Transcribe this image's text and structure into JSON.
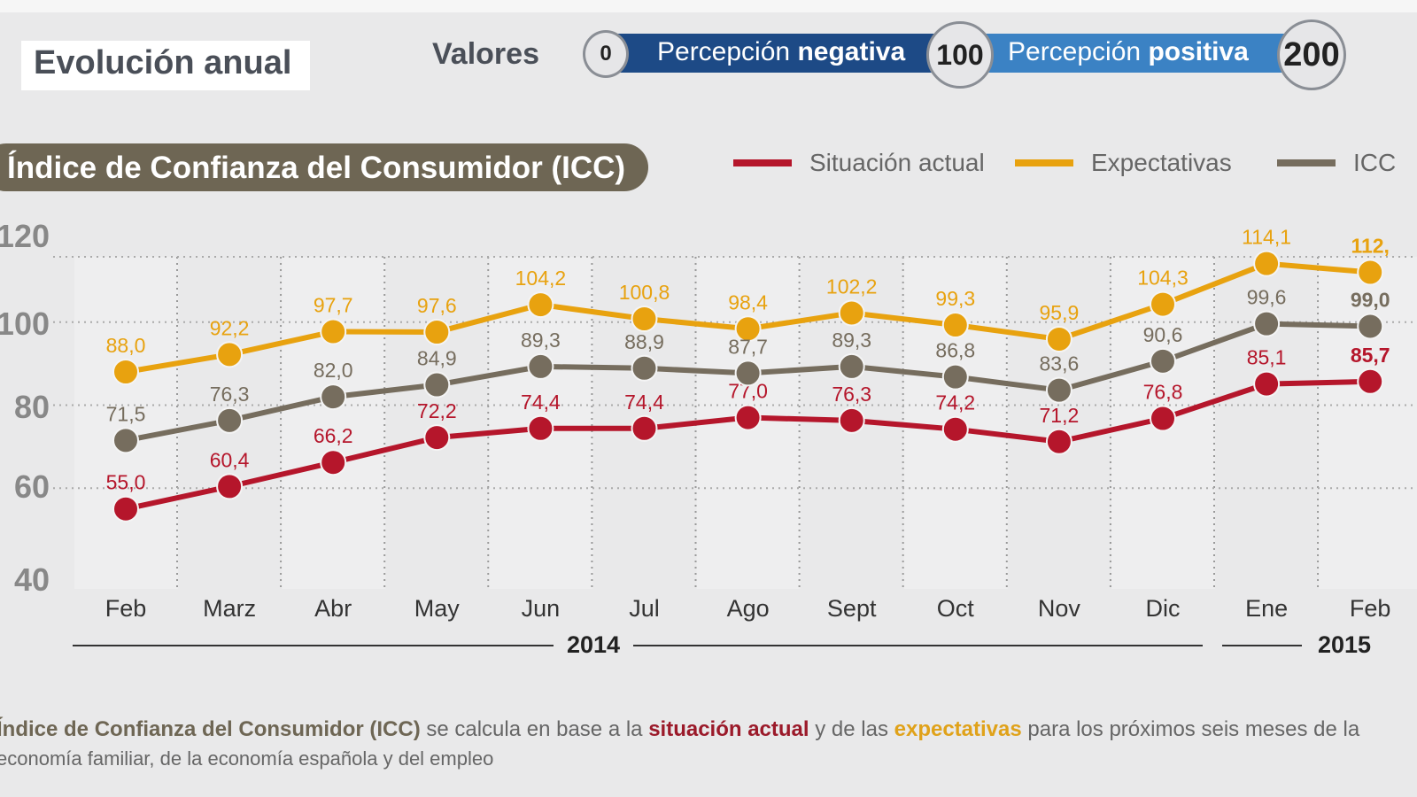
{
  "header": {
    "title": "Evolución anual",
    "valores_label": "Valores",
    "scale": {
      "min": "0",
      "mid": "100",
      "max": "200",
      "negative_pre": "Percepción ",
      "negative_bold": "negativa",
      "positive_pre": "Percepción ",
      "positive_bold": "positiva"
    }
  },
  "chart_data": {
    "type": "line",
    "title": "Índice de Confianza del Consumidor (ICC)",
    "categories": [
      "Feb",
      "Marz",
      "Abr",
      "May",
      "Jun",
      "Jul",
      "Ago",
      "Sept",
      "Oct",
      "Nov",
      "Dic",
      "Ene",
      "Feb"
    ],
    "year_labels": [
      "2014",
      "2015"
    ],
    "yticks": [
      "120",
      "100",
      "80",
      "60",
      "40"
    ],
    "ylim": [
      40,
      120
    ],
    "grid": true,
    "legend_position": "top-right",
    "series": [
      {
        "name": "Situación actual",
        "color": "#b5162b",
        "values": [
          55.0,
          60.4,
          66.2,
          72.2,
          74.4,
          74.4,
          77.0,
          76.3,
          74.2,
          71.2,
          76.8,
          85.1,
          85.7
        ],
        "labels": [
          "55,0",
          "60,4",
          "66,2",
          "72,2",
          "74,4",
          "74,4",
          "77,0",
          "76,3",
          "74,2",
          "71,2",
          "76,8",
          "85,1",
          "85,7"
        ]
      },
      {
        "name": "Expectativas",
        "color": "#e8a20f",
        "values": [
          88.0,
          92.2,
          97.7,
          97.6,
          104.2,
          100.8,
          98.4,
          102.2,
          99.3,
          95.9,
          104.3,
          114.1,
          112
        ],
        "labels": [
          "88,0",
          "92,2",
          "97,7",
          "97,6",
          "104,2",
          "100,8",
          "98,4",
          "102,2",
          "99,3",
          "95,9",
          "104,3",
          "114,1",
          "112,"
        ]
      },
      {
        "name": "ICC",
        "color": "#766d5e",
        "values": [
          71.5,
          76.3,
          82.0,
          84.9,
          89.3,
          88.9,
          87.7,
          89.3,
          86.8,
          83.6,
          90.6,
          99.6,
          99.0
        ],
        "labels": [
          "71,5",
          "76,3",
          "82,0",
          "84,9",
          "89,3",
          "88,9",
          "87,7",
          "89,3",
          "86,8",
          "83,6",
          "90,6",
          "99,6",
          "99,0"
        ]
      }
    ]
  },
  "footer": {
    "p1": "Índice de Confianza del Consumidor (ICC)",
    "p2": " se calcula en base a la ",
    "p3": "situación actual",
    "p4": " y de las ",
    "p5": "expectativas",
    "p6": " para los próximos seis meses de la",
    "line2": "economía familiar, de la economía española y del empleo"
  }
}
